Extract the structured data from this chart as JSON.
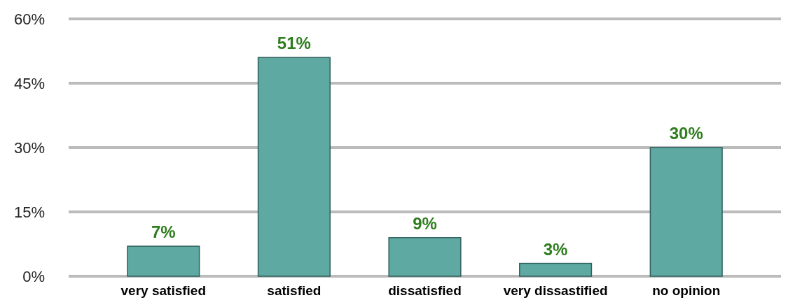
{
  "chart_data": {
    "type": "bar",
    "categories": [
      "very satisfied",
      "satisfied",
      "dissatisfied",
      "very dissastified",
      "no opinion"
    ],
    "values": [
      7,
      51,
      9,
      3,
      30
    ],
    "color": "#5fa9a3",
    "value_labels": [
      "7%",
      "51%",
      "9%",
      "3%",
      "30%"
    ],
    "ylim": [
      0,
      60
    ],
    "yticks": [
      {
        "value": 0,
        "label": "0%"
      },
      {
        "value": 15,
        "label": "15%"
      },
      {
        "value": 30,
        "label": "30%"
      },
      {
        "value": 45,
        "label": "45%"
      },
      {
        "value": 60,
        "label": "60%"
      }
    ],
    "grid": "y"
  }
}
